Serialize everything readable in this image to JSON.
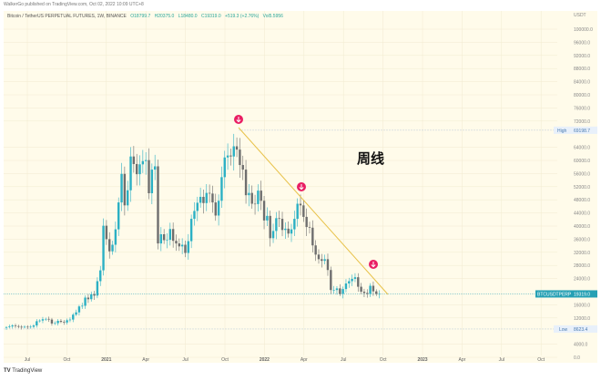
{
  "header": {
    "published": "WalkerGo published on TradingView.com, Oct 02, 2022 10:09 UTC+8"
  },
  "legend": {
    "symbol": "Bitcoin / TetherUS PERPETUAL FUTURES, 1W, BINANCE",
    "open": "O18799.7",
    "high": "H20375.0",
    "low": "L18480.0",
    "close": "C19319.0",
    "change": "+519.3 (+2.76%)",
    "vol": "Vol5.5956"
  },
  "brand": {
    "name": "TradingView"
  },
  "colors": {
    "up": "#2bb0c4",
    "down": "#6e6e6e",
    "background": "#fffbea",
    "trendline": "#e8c24a",
    "arrow": "#e91e63",
    "price": "#26a0b4"
  },
  "chart_data": {
    "type": "candlestick",
    "annotation": "周线",
    "currency": "USDT",
    "first_open": 9.0,
    "closes_thousands": [
      9.2,
      9.4,
      9.7,
      9.5,
      9.3,
      9.1,
      9.3,
      9.2,
      9.3,
      9.7,
      11.0,
      11.2,
      11.6,
      11.7,
      11.5,
      10.3,
      10.4,
      11.1,
      10.8,
      10.6,
      11.3,
      11.5,
      13.0,
      13.7,
      15.5,
      15.7,
      18.2,
      17.7,
      19.2,
      18.8,
      23.2,
      26.5,
      40.1,
      36.0,
      32.3,
      34.3,
      39.0,
      47.2,
      55.9,
      46.3,
      50.9,
      61.2,
      58.9,
      55.8,
      58.8,
      59.8,
      60.1,
      50.0,
      57.2,
      58.2,
      34.7,
      37.5,
      35.7,
      35.8,
      39.1,
      35.5,
      34.7,
      33.8,
      34.3,
      31.8,
      35.4,
      42.2,
      44.6,
      47.1,
      48.9,
      47.0,
      50.1,
      49.9,
      47.2,
      43.2,
      47.7,
      54.9,
      60.9,
      61.5,
      61.2,
      64.3,
      63.3,
      58.6,
      57.2,
      49.4,
      50.1,
      46.8,
      46.7,
      50.8,
      47.7,
      41.7,
      43.1,
      36.3,
      38.5,
      42.4,
      42.2,
      38.8,
      39.2,
      37.7,
      39.0,
      42.2,
      46.8,
      46.3,
      42.8,
      39.7,
      39.5,
      34.1,
      31.3,
      29.9,
      29.4,
      29.9,
      26.6,
      20.5,
      20.5,
      21.0,
      19.3,
      20.8,
      22.5,
      23.2,
      23.9,
      24.4,
      21.5,
      20.0,
      19.6,
      19.3,
      21.8,
      20.1,
      19.3,
      19.319
    ],
    "x_ticks": [
      "Jul",
      "Oct",
      "2021",
      "Apr",
      "Jul",
      "Oct",
      "2022",
      "Apr",
      "Jul",
      "Oct",
      "2023",
      "Apr",
      "Jul",
      "Oct"
    ],
    "y_ticks": [
      "100000.0",
      "96000.0",
      "92000.0",
      "88000.0",
      "84000.0",
      "80000.0",
      "76000.0",
      "72000.0",
      "64000.0",
      "60000.0",
      "56000.0",
      "52000.0",
      "48000.0",
      "44000.0",
      "40000.0",
      "36000.0",
      "32000.0",
      "28000.0",
      "24000.0",
      "16000.0",
      "12000.0",
      "4000.0",
      "0.0"
    ],
    "ylim": [
      0,
      100000
    ],
    "high_label": "High",
    "high_value": "69198.7",
    "low_label": "Low",
    "low_value": "8623.4",
    "price_label": "BTCUSDTPERP",
    "price_value": "19319.0",
    "trendline": {
      "from": [
        69000,
        "2021-11"
      ],
      "to": [
        19000,
        "2022-10"
      ]
    },
    "sell_signals": 3
  }
}
